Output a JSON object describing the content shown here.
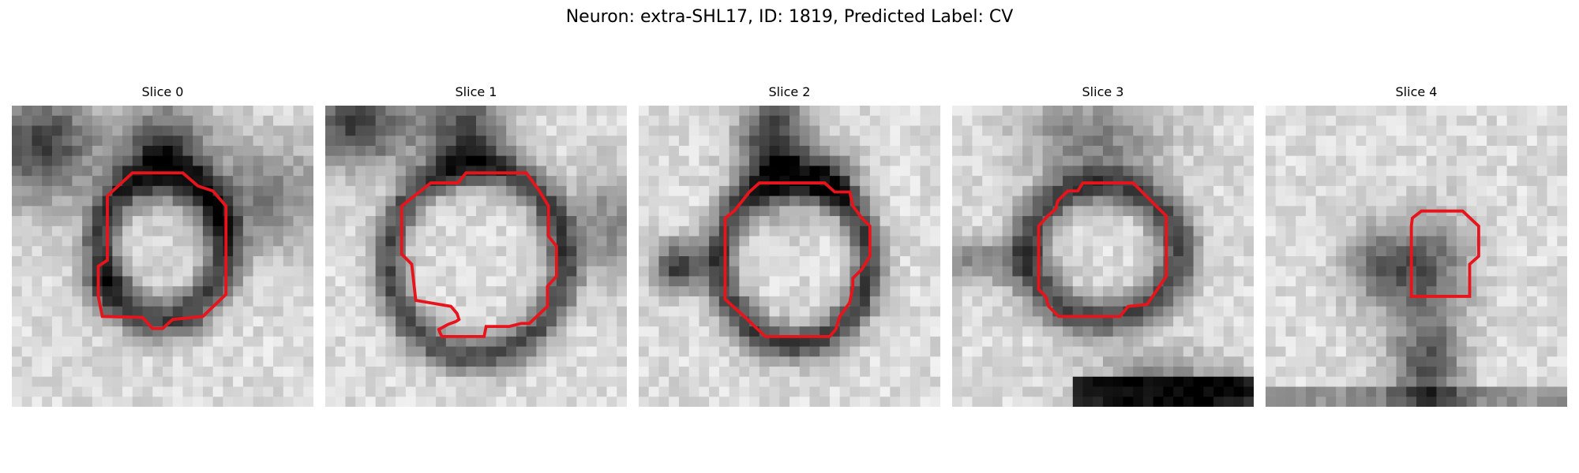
{
  "figure": {
    "title": "Neuron: extra-SHL17, ID: 1819, Predicted Label: CV"
  },
  "colors": {
    "outline": "#e8141c"
  },
  "panels": [
    {
      "title": "Slice 0"
    },
    {
      "title": "Slice 1"
    },
    {
      "title": "Slice 2"
    },
    {
      "title": "Slice 3"
    },
    {
      "title": "Slice 4"
    }
  ]
}
